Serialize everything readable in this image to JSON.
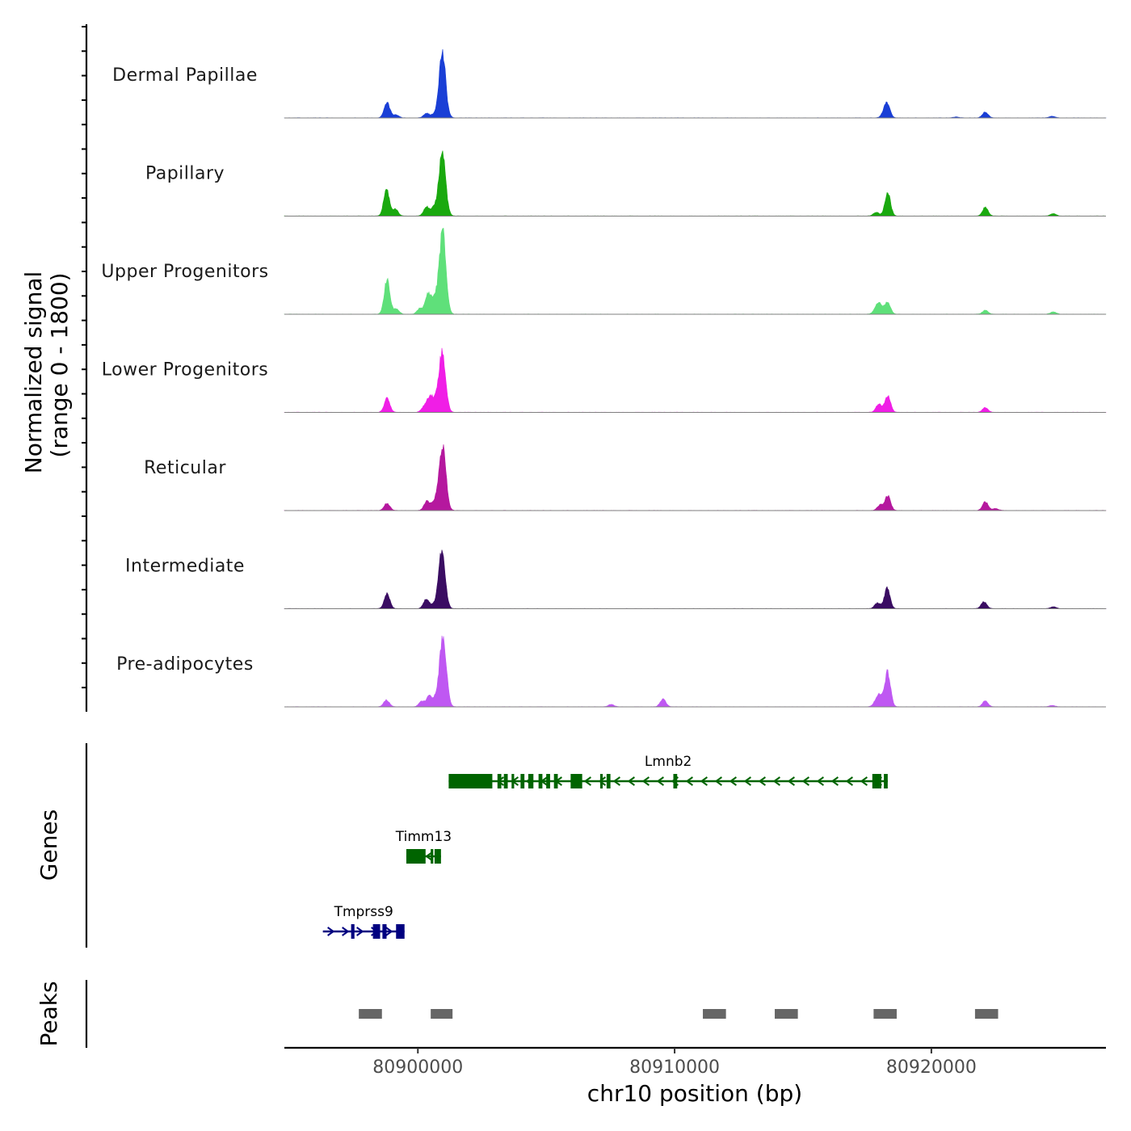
{
  "chart_data": {
    "type": "area",
    "title": "",
    "chromosome": "chr10",
    "xlabel": "chr10 position (bp)",
    "xlim": [
      80894800,
      80926800
    ],
    "x_ticks": [
      80900000,
      80910000,
      80920000
    ],
    "x_tick_labels": [
      "80900000",
      "80910000",
      "80920000"
    ],
    "coverage": {
      "ylabel_line1": "Normalized signal",
      "ylabel_line2": "(range 0 - 1800)",
      "ylim": [
        0,
        1800
      ],
      "tracks": [
        {
          "name": "Dermal Papillae",
          "color": "#1a3fd6",
          "peaks": [
            [
              80898800,
              320
            ],
            [
              80899150,
              60
            ],
            [
              80900330,
              90
            ],
            [
              80900580,
              50
            ],
            [
              80900950,
              1350
            ],
            [
              80918150,
              70
            ],
            [
              80918280,
              280
            ],
            [
              80920950,
              20
            ],
            [
              80922100,
              120
            ],
            [
              80924700,
              35
            ]
          ]
        },
        {
          "name": "Papillary",
          "color": "#1aa90f",
          "peaks": [
            [
              80898780,
              560
            ],
            [
              80899120,
              140
            ],
            [
              80900330,
              190
            ],
            [
              80900630,
              160
            ],
            [
              80900950,
              1330
            ],
            [
              80917850,
              80
            ],
            [
              80918300,
              480
            ],
            [
              80922100,
              180
            ],
            [
              80924750,
              50
            ]
          ]
        },
        {
          "name": "Upper Progenitors",
          "color": "#5fe07a",
          "peaks": [
            [
              80898800,
              710
            ],
            [
              80899160,
              110
            ],
            [
              80900080,
              120
            ],
            [
              80900400,
              420
            ],
            [
              80900650,
              290
            ],
            [
              80900960,
              1720
            ],
            [
              80917850,
              110
            ],
            [
              80918000,
              190
            ],
            [
              80918300,
              240
            ],
            [
              80922100,
              80
            ],
            [
              80924750,
              50
            ]
          ]
        },
        {
          "name": "Lower Progenitors",
          "color": "#f01ee6",
          "peaks": [
            [
              80898800,
              290
            ],
            [
              80900250,
              120
            ],
            [
              80900480,
              330
            ],
            [
              80900710,
              180
            ],
            [
              80900950,
              1230
            ],
            [
              80917950,
              170
            ],
            [
              80918300,
              340
            ],
            [
              80922100,
              100
            ]
          ]
        },
        {
          "name": "Reticular",
          "color": "#b5189e",
          "peaks": [
            [
              80898800,
              150
            ],
            [
              80900350,
              190
            ],
            [
              80900650,
              180
            ],
            [
              80900960,
              1340
            ],
            [
              80918000,
              110
            ],
            [
              80918300,
              310
            ],
            [
              80922100,
              180
            ],
            [
              80922500,
              40
            ]
          ]
        },
        {
          "name": "Intermediate",
          "color": "#3a0d62",
          "peaks": [
            [
              80898800,
              310
            ],
            [
              80900330,
              200
            ],
            [
              80900600,
              60
            ],
            [
              80900930,
              1180
            ],
            [
              80917900,
              120
            ],
            [
              80918280,
              420
            ],
            [
              80922050,
              140
            ],
            [
              80924750,
              40
            ]
          ]
        },
        {
          "name": "Pre-adipocytes",
          "color": "#bf58f2",
          "peaks": [
            [
              80898780,
              140
            ],
            [
              80900150,
              110
            ],
            [
              80900450,
              220
            ],
            [
              80900730,
              170
            ],
            [
              80900980,
              1440
            ],
            [
              80907530,
              50
            ],
            [
              80909550,
              160
            ],
            [
              80917850,
              110
            ],
            [
              80918000,
              200
            ],
            [
              80918300,
              720
            ],
            [
              80922100,
              120
            ],
            [
              80924700,
              30
            ]
          ]
        }
      ]
    },
    "genes": {
      "ylabel": "Genes",
      "items": [
        {
          "name": "Lmnb2",
          "strand": "-",
          "color": "#006400",
          "start": 80901200,
          "end": 80918300,
          "exons": [
            [
              80901200,
              80902900
            ],
            [
              80903100,
              80903250
            ],
            [
              80903350,
              80903500
            ],
            [
              80903650,
              80903750
            ],
            [
              80904000,
              80904150
            ],
            [
              80904300,
              80904500
            ],
            [
              80904700,
              80904850
            ],
            [
              80905000,
              80905150
            ],
            [
              80905300,
              80905450
            ],
            [
              80905950,
              80906400
            ],
            [
              80907100,
              80907200
            ],
            [
              80907350,
              80907500
            ],
            [
              80909950,
              80910100
            ],
            [
              80917700,
              80918050
            ],
            [
              80918150,
              80918300
            ]
          ]
        },
        {
          "name": "Timm13",
          "strand": "-",
          "color": "#006400",
          "start": 80899550,
          "end": 80900900,
          "exons": [
            [
              80899550,
              80900300
            ],
            [
              80900500,
              80900600
            ],
            [
              80900650,
              80900900
            ]
          ]
        },
        {
          "name": "Tmprss9",
          "strand": "+",
          "color": "#000080",
          "start": 80896300,
          "end": 80899480,
          "exons": [
            [
              80897400,
              80897530
            ],
            [
              80898250,
              80898530
            ],
            [
              80898620,
              80898780
            ],
            [
              80899150,
              80899480
            ]
          ]
        }
      ]
    },
    "peaks": {
      "ylabel": "Peaks",
      "color": "#666666",
      "regions": [
        [
          80897700,
          80898600
        ],
        [
          80900500,
          80901350
        ],
        [
          80911100,
          80912000
        ],
        [
          80913900,
          80914800
        ],
        [
          80917750,
          80918650
        ],
        [
          80921700,
          80922600
        ]
      ]
    }
  }
}
